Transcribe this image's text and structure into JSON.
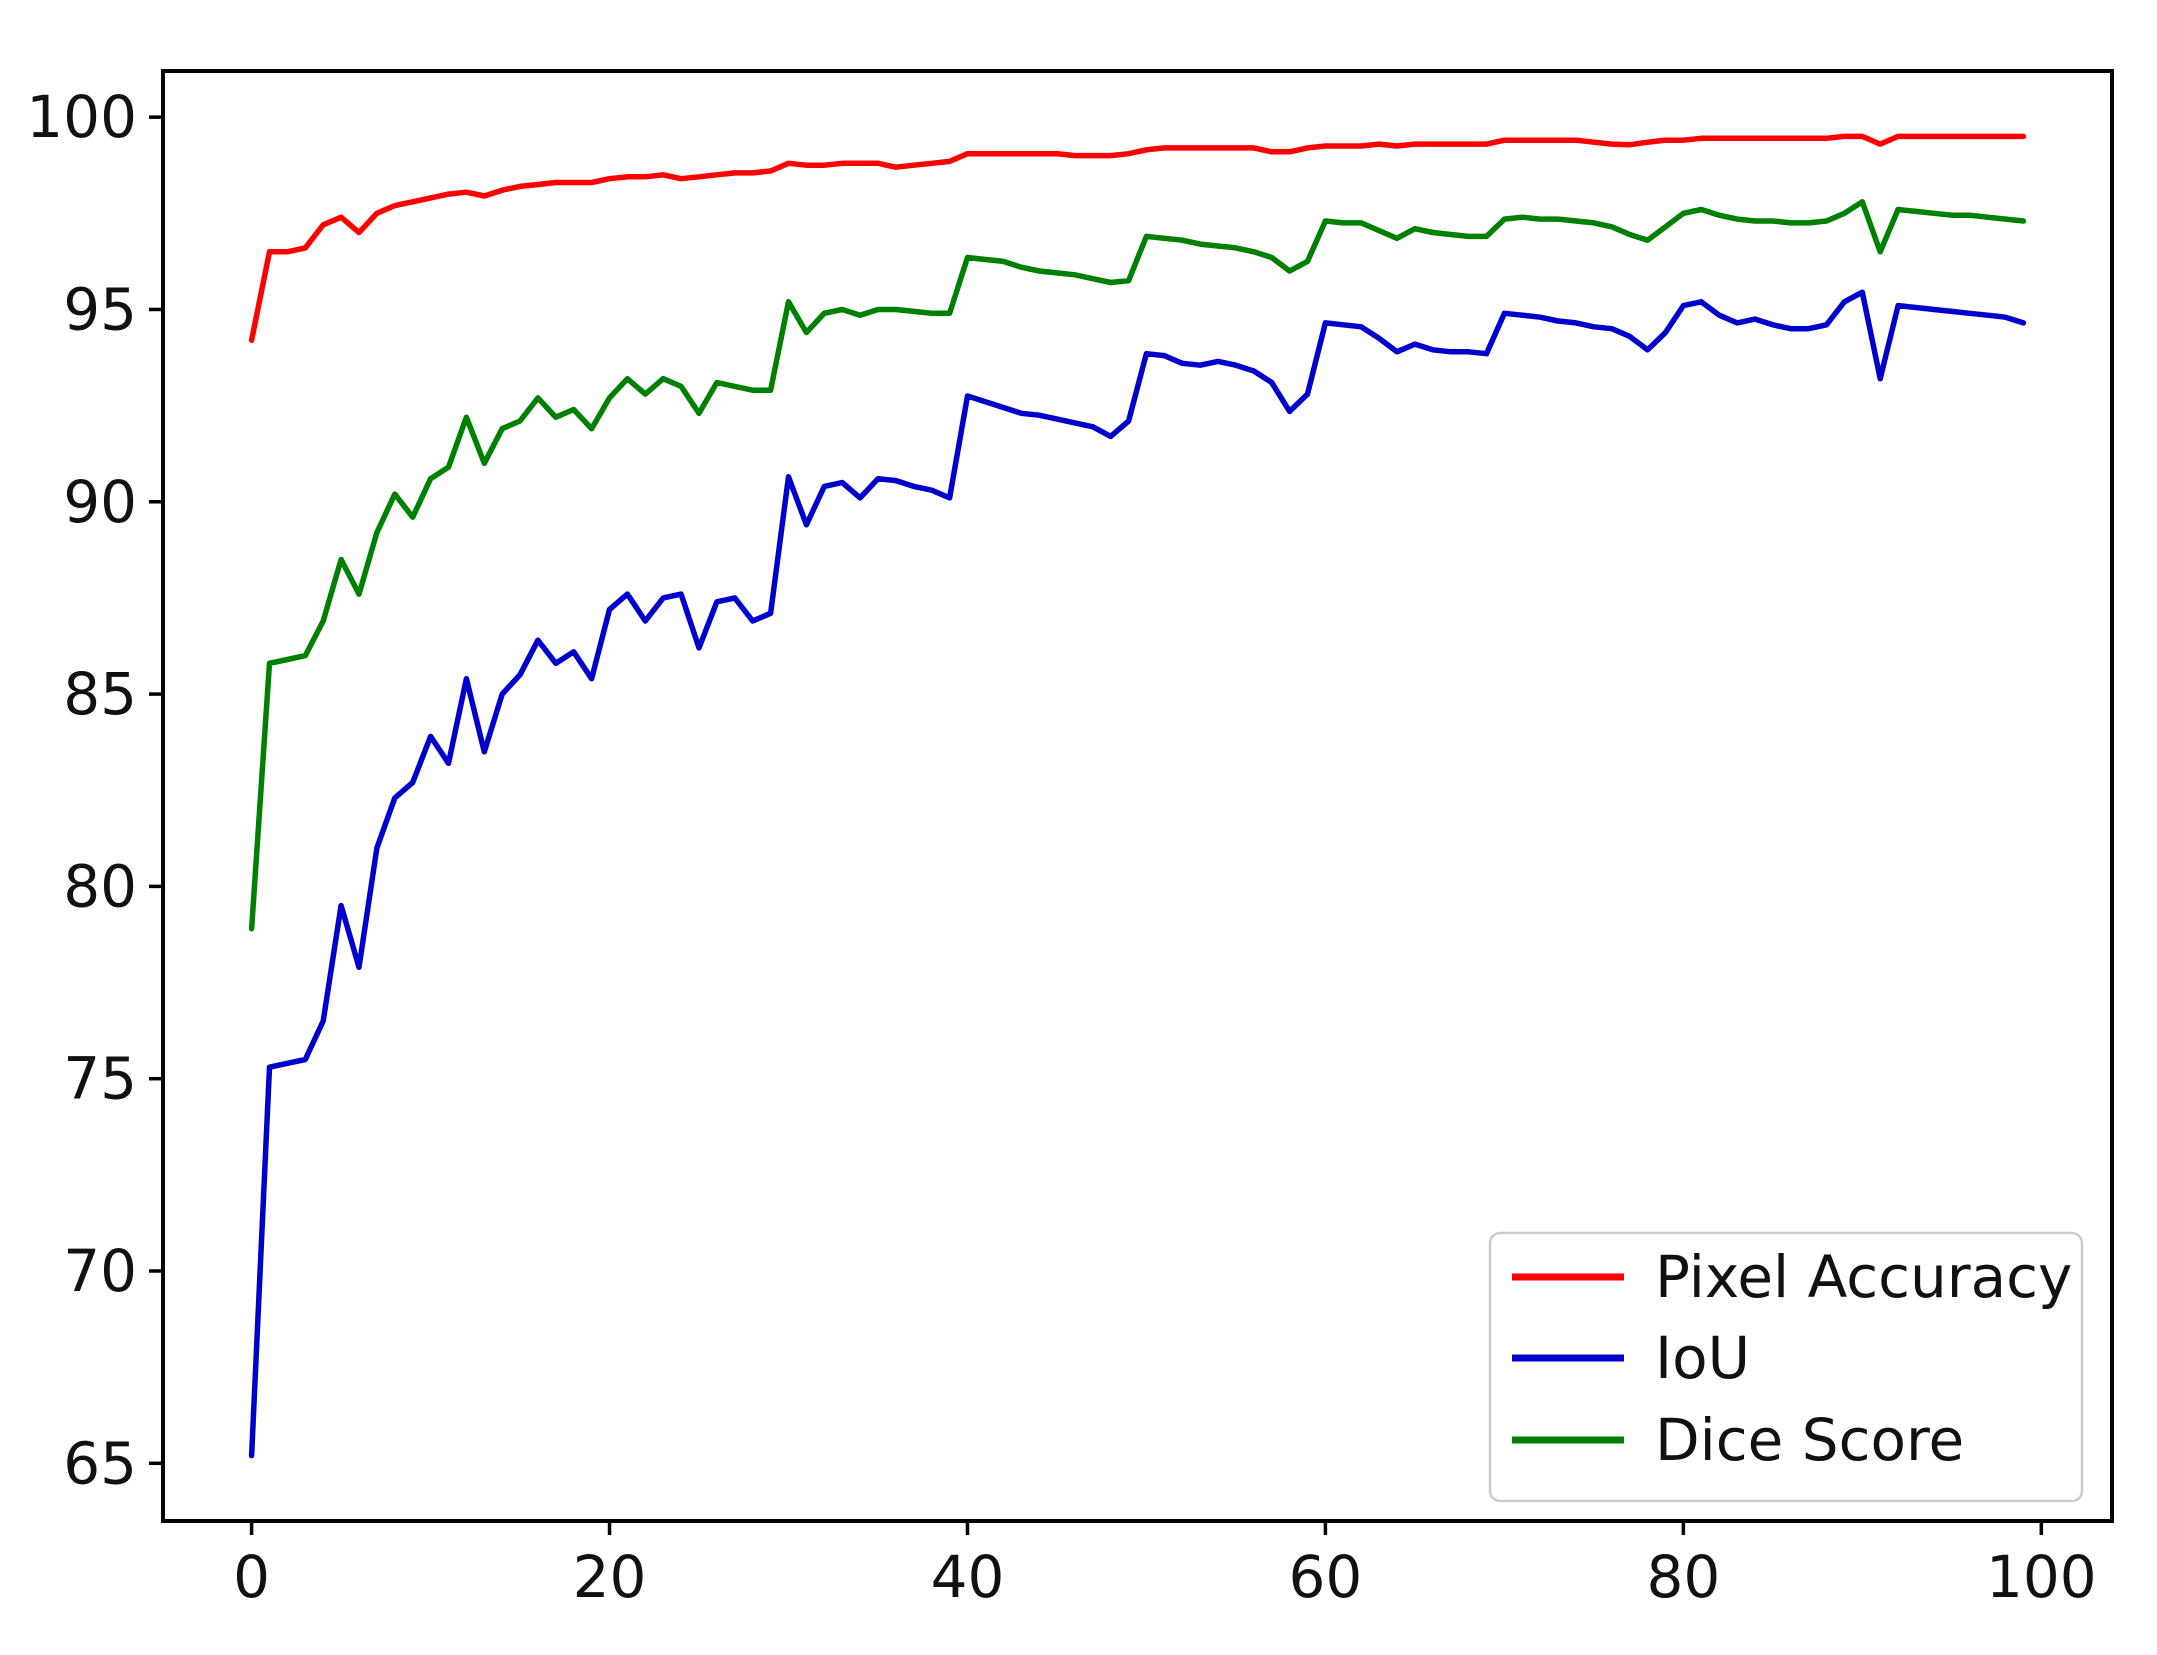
{
  "figure": {
    "background_color": "#ffffff",
    "frame_color": "#000000",
    "tick_label_color": "#111111"
  },
  "legend": {
    "position": "lower right",
    "items": [
      {
        "label": "Pixel Accuracy",
        "color": "#ff0000"
      },
      {
        "label": "IoU",
        "color": "#0000cd"
      },
      {
        "label": "Dice Score",
        "color": "#008000"
      }
    ]
  },
  "chart_data": {
    "type": "line",
    "title": "",
    "xlabel": "",
    "ylabel": "",
    "grid": false,
    "legend_position": "lower right",
    "xlim": [
      -4.95,
      103.95
    ],
    "ylim": [
      63.5,
      101.2
    ],
    "xticks": [
      0,
      20,
      40,
      60,
      80,
      100
    ],
    "yticks": [
      65,
      70,
      75,
      80,
      85,
      90,
      95,
      100
    ],
    "x": [
      0,
      1,
      2,
      3,
      4,
      5,
      6,
      7,
      8,
      9,
      10,
      11,
      12,
      13,
      14,
      15,
      16,
      17,
      18,
      19,
      20,
      21,
      22,
      23,
      24,
      25,
      26,
      27,
      28,
      29,
      30,
      31,
      32,
      33,
      34,
      35,
      36,
      37,
      38,
      39,
      40,
      41,
      42,
      43,
      44,
      45,
      46,
      47,
      48,
      49,
      50,
      51,
      52,
      53,
      54,
      55,
      56,
      57,
      58,
      59,
      60,
      61,
      62,
      63,
      64,
      65,
      66,
      67,
      68,
      69,
      70,
      71,
      72,
      73,
      74,
      75,
      76,
      77,
      78,
      79,
      80,
      81,
      82,
      83,
      84,
      85,
      86,
      87,
      88,
      89,
      90,
      91,
      92,
      93,
      94,
      95,
      96,
      97,
      98,
      99
    ],
    "series": [
      {
        "name": "Pixel Accuracy",
        "color": "#ff0000",
        "values": [
          94.2,
          96.5,
          96.5,
          96.6,
          97.2,
          97.4,
          97.0,
          97.5,
          97.7,
          97.8,
          97.9,
          98.0,
          98.05,
          97.95,
          98.1,
          98.2,
          98.25,
          98.3,
          98.3,
          98.3,
          98.4,
          98.45,
          98.45,
          98.5,
          98.4,
          98.45,
          98.5,
          98.55,
          98.55,
          98.6,
          98.8,
          98.75,
          98.75,
          98.8,
          98.8,
          98.8,
          98.7,
          98.75,
          98.8,
          98.85,
          99.05,
          99.05,
          99.05,
          99.05,
          99.05,
          99.05,
          99.0,
          99.0,
          99.0,
          99.05,
          99.15,
          99.2,
          99.2,
          99.2,
          99.2,
          99.2,
          99.2,
          99.1,
          99.1,
          99.2,
          99.25,
          99.25,
          99.25,
          99.3,
          99.25,
          99.3,
          99.3,
          99.3,
          99.3,
          99.3,
          99.4,
          99.4,
          99.4,
          99.4,
          99.4,
          99.35,
          99.3,
          99.28,
          99.35,
          99.4,
          99.4,
          99.45,
          99.45,
          99.45,
          99.45,
          99.45,
          99.45,
          99.45,
          99.45,
          99.5,
          99.5,
          99.3,
          99.5,
          99.5,
          99.5,
          99.5,
          99.5,
          99.5,
          99.5,
          99.5
        ]
      },
      {
        "name": "IoU",
        "color": "#0000cd",
        "values": [
          65.2,
          75.3,
          75.4,
          75.5,
          76.5,
          79.5,
          77.9,
          81.0,
          82.3,
          82.7,
          83.9,
          83.2,
          85.4,
          83.5,
          85.0,
          85.5,
          86.4,
          85.8,
          86.1,
          85.4,
          87.2,
          87.6,
          86.9,
          87.5,
          87.6,
          86.2,
          87.4,
          87.5,
          86.9,
          87.1,
          90.65,
          89.4,
          90.4,
          90.5,
          90.1,
          90.6,
          90.55,
          90.4,
          90.3,
          90.1,
          92.75,
          92.6,
          92.45,
          92.3,
          92.25,
          92.15,
          92.05,
          91.95,
          91.7,
          92.1,
          93.85,
          93.8,
          93.6,
          93.55,
          93.65,
          93.55,
          93.4,
          93.1,
          92.35,
          92.8,
          94.65,
          94.6,
          94.55,
          94.25,
          93.9,
          94.1,
          93.95,
          93.9,
          93.9,
          93.85,
          94.9,
          94.85,
          94.8,
          94.7,
          94.65,
          94.55,
          94.5,
          94.3,
          93.95,
          94.4,
          95.1,
          95.2,
          94.85,
          94.65,
          94.75,
          94.6,
          94.5,
          94.5,
          94.6,
          95.2,
          95.45,
          93.2,
          95.1,
          95.05,
          95.0,
          94.95,
          94.9,
          94.85,
          94.8,
          94.65
        ]
      },
      {
        "name": "Dice Score",
        "color": "#008000",
        "values": [
          78.9,
          85.8,
          85.9,
          86.0,
          86.9,
          88.5,
          87.6,
          89.2,
          90.2,
          89.6,
          90.6,
          90.9,
          92.2,
          91.0,
          91.9,
          92.1,
          92.7,
          92.2,
          92.4,
          91.9,
          92.7,
          93.2,
          92.8,
          93.2,
          93.0,
          92.3,
          93.1,
          93.0,
          92.9,
          92.9,
          95.2,
          94.4,
          94.9,
          95.0,
          94.85,
          95.0,
          95.0,
          94.95,
          94.9,
          94.9,
          96.35,
          96.3,
          96.25,
          96.1,
          96.0,
          95.95,
          95.9,
          95.8,
          95.7,
          95.75,
          96.9,
          96.85,
          96.8,
          96.7,
          96.65,
          96.6,
          96.5,
          96.35,
          96.0,
          96.25,
          97.3,
          97.25,
          97.25,
          97.05,
          96.85,
          97.1,
          97.0,
          96.95,
          96.9,
          96.9,
          97.35,
          97.4,
          97.35,
          97.35,
          97.3,
          97.25,
          97.15,
          96.95,
          96.8,
          97.15,
          97.5,
          97.6,
          97.45,
          97.35,
          97.3,
          97.3,
          97.25,
          97.25,
          97.3,
          97.5,
          97.8,
          96.5,
          97.6,
          97.55,
          97.5,
          97.45,
          97.45,
          97.4,
          97.35,
          97.3
        ]
      }
    ]
  }
}
